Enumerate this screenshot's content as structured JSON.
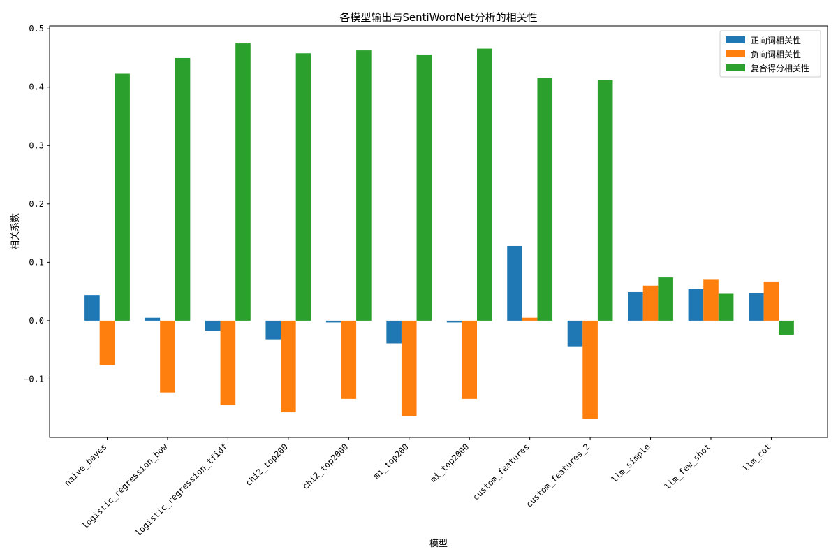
{
  "chart_data": {
    "type": "bar",
    "title": "各模型输出与SentiWordNet分析的相关性",
    "xlabel": "模型",
    "ylabel": "相关系数",
    "categories": [
      "naive_bayes",
      "logistic_regression_bow",
      "logistic_regression_tfidf",
      "chi2_top200",
      "chi2_top2000",
      "mi_top200",
      "mi_top2000",
      "custom_features",
      "custom_features_2",
      "llm_simple",
      "llm_few_shot",
      "llm_cot"
    ],
    "series": [
      {
        "name": "正向词相关性",
        "color": "#1f77b4",
        "values": [
          0.044,
          0.005,
          -0.017,
          -0.032,
          -0.003,
          -0.039,
          -0.003,
          0.128,
          -0.044,
          0.049,
          0.054,
          0.047
        ]
      },
      {
        "name": "负向词相关性",
        "color": "#ff7f0e",
        "values": [
          -0.076,
          -0.123,
          -0.145,
          -0.157,
          -0.134,
          -0.163,
          -0.134,
          0.005,
          -0.168,
          0.06,
          0.07,
          0.067
        ]
      },
      {
        "name": "复合得分相关性",
        "color": "#2ca02c",
        "values": [
          0.423,
          0.45,
          0.475,
          0.458,
          0.463,
          0.456,
          0.466,
          0.416,
          0.412,
          0.074,
          0.046,
          -0.024
        ]
      }
    ],
    "ylim": [
      -0.2,
      0.505
    ],
    "yticks": [
      -0.1,
      0.0,
      0.1,
      0.2,
      0.3,
      0.4,
      0.5
    ],
    "ytick_labels": [
      "−0.1",
      "0.0",
      "0.1",
      "0.2",
      "0.3",
      "0.4",
      "0.5"
    ],
    "legend_position": "top-right",
    "grid": false
  }
}
